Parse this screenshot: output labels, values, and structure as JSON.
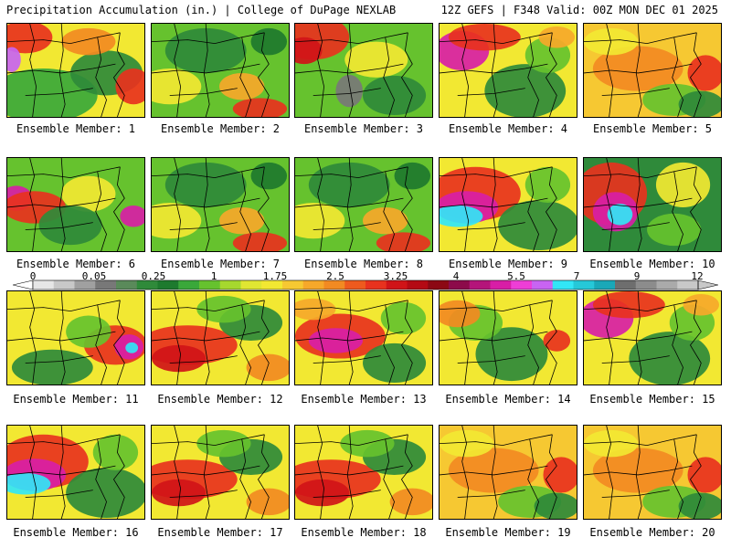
{
  "header": {
    "left": "Precipitation Accumulation (in.) | College of DuPage NEXLAB",
    "right": "12Z GEFS | F348 Valid: 00Z MON DEC 01 2025"
  },
  "panels": [
    {
      "label": "Ensemble Member: 1",
      "scheme": "wet-northwest"
    },
    {
      "label": "Ensemble Member: 2",
      "scheme": "green-mix"
    },
    {
      "label": "Ensemble Member: 3",
      "scheme": "red-northwest"
    },
    {
      "label": "Ensemble Member: 4",
      "scheme": "magenta-northwest"
    },
    {
      "label": "Ensemble Member: 5",
      "scheme": "orange-mix"
    },
    {
      "label": "Ensemble Member: 6",
      "scheme": "magenta-west"
    },
    {
      "label": "Ensemble Member: 7",
      "scheme": "green-mix"
    },
    {
      "label": "Ensemble Member: 8",
      "scheme": "green-mix"
    },
    {
      "label": "Ensemble Member: 9",
      "scheme": "cyan-band"
    },
    {
      "label": "Ensemble Member: 10",
      "scheme": "cyan-center"
    },
    {
      "label": "Ensemble Member: 11",
      "scheme": "magenta-east"
    },
    {
      "label": "Ensemble Member: 12",
      "scheme": "red-band"
    },
    {
      "label": "Ensemble Member: 13",
      "scheme": "magenta-band"
    },
    {
      "label": "Ensemble Member: 14",
      "scheme": "yellow-mix"
    },
    {
      "label": "Ensemble Member: 15",
      "scheme": "magenta-northwest"
    },
    {
      "label": "Ensemble Member: 16",
      "scheme": "cyan-band"
    },
    {
      "label": "Ensemble Member: 17",
      "scheme": "red-band"
    },
    {
      "label": "Ensemble Member: 18",
      "scheme": "red-band"
    },
    {
      "label": "Ensemble Member: 19",
      "scheme": "orange-mix"
    },
    {
      "label": "Ensemble Member: 20",
      "scheme": "orange-mix"
    }
  ],
  "colorbar": {
    "labels": [
      "0",
      "0.05",
      "0.25",
      "1",
      "1.75",
      "2.5",
      "3.25",
      "4",
      "5.5",
      "7",
      "9",
      "12"
    ],
    "colors": [
      "#e6e6e6",
      "#c8c8c8",
      "#a0a0a0",
      "#787878",
      "#5a8a5a",
      "#2f8a3a",
      "#1e7a2e",
      "#3aa83a",
      "#66c22e",
      "#a6d82e",
      "#e0e632",
      "#f2e832",
      "#f6c832",
      "#f6a82a",
      "#f28a22",
      "#ee5a1e",
      "#e8321e",
      "#d01418",
      "#b40a14",
      "#8c0814",
      "#8c0a4a",
      "#b4147a",
      "#d81ea6",
      "#ee3ed6",
      "#c864f2",
      "#32e6f6",
      "#26c8d8",
      "#1aa8b8",
      "#6e6e6e",
      "#8c8c8c",
      "#aaaaaa",
      "#c8c8c8"
    ]
  }
}
